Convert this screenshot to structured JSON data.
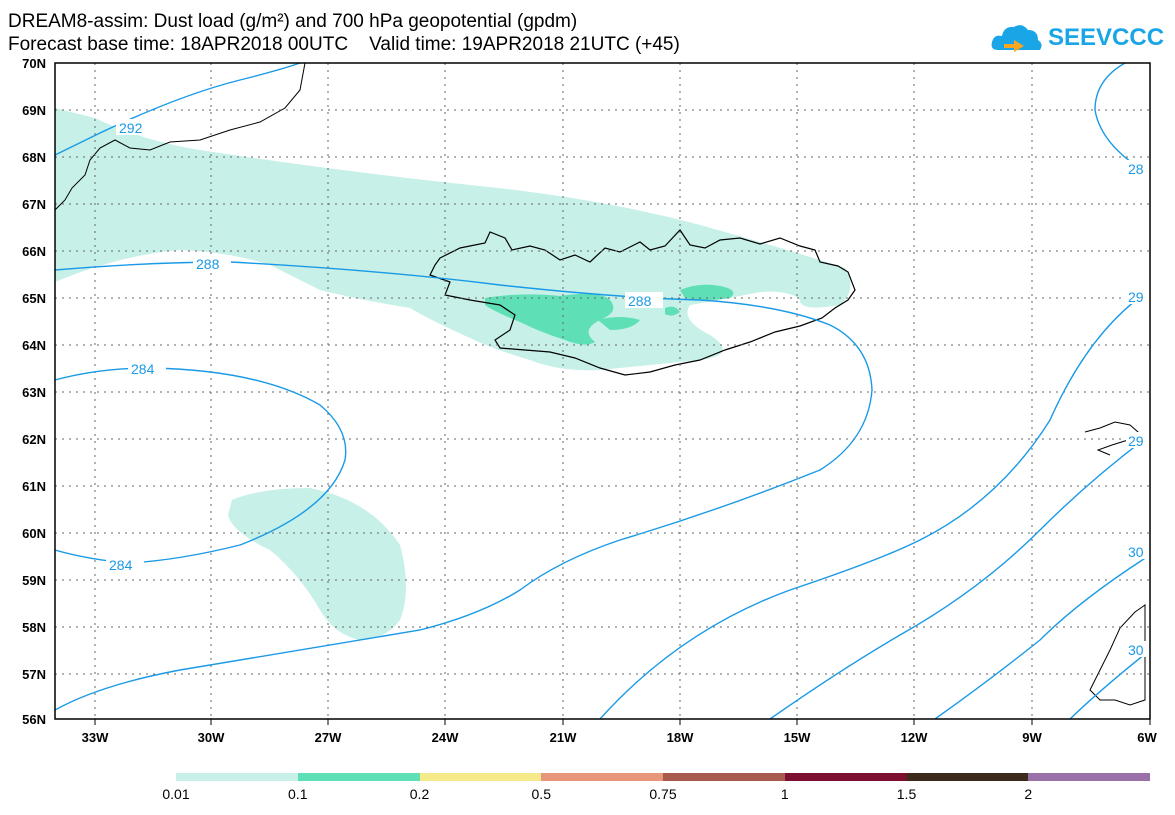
{
  "header": {
    "title_line1": "DREAM8-assim: Dust load (g/m²) and 700 hPa geopotential (gpdm)",
    "title_line2": "Forecast base time: 18APR2018 00UTC    Valid time: 19APR2018 21UTC (+45)",
    "logo_text": "SEEVCCC"
  },
  "map": {
    "lat_labels": [
      "70N",
      "69N",
      "68N",
      "67N",
      "66N",
      "65N",
      "64N",
      "63N",
      "62N",
      "61N",
      "60N",
      "59N",
      "58N",
      "57N",
      "56N"
    ],
    "lon_labels": [
      "33W",
      "30W",
      "27W",
      "24W",
      "21W",
      "18W",
      "15W",
      "12W",
      "9W",
      "6W"
    ],
    "contour_labels": [
      "292",
      "288",
      "288",
      "284",
      "284",
      "28",
      "29",
      "29",
      "30",
      "30"
    ],
    "contour_color": "#1a9ae6",
    "coast_color": "#000000"
  },
  "colorbar": {
    "labels": [
      "0.01",
      "0.1",
      "0.2",
      "0.5",
      "0.75",
      "1",
      "1.5",
      "2"
    ],
    "colors": [
      "#c6f0e8",
      "#5fdfb5",
      "#f5e98a",
      "#e8967a",
      "#a85a4e",
      "#7d1030",
      "#3c2a1a",
      "#9a70a8"
    ]
  }
}
